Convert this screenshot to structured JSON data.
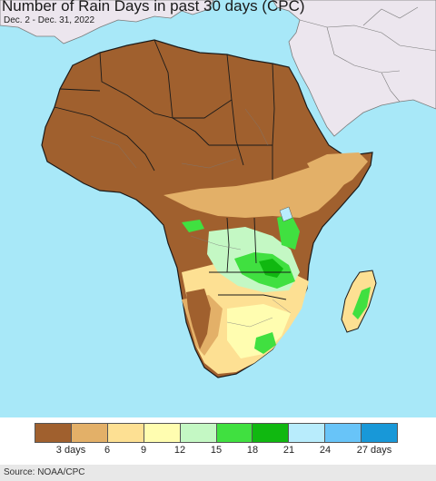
{
  "title": "Number of Rain Days in past 30 days (CPC)",
  "subtitle": "Dec. 2 - Dec. 31, 2022",
  "source": "Source: NOAA/CPC",
  "colors": {
    "ocean": "#a8e8f8",
    "no_data_land": "#ece6ee",
    "border": "#1a1a1a",
    "subborder": "#7a7a7a"
  },
  "legend": {
    "colors": [
      "#a0602e",
      "#e3b068",
      "#fde093",
      "#fffdb0",
      "#c4f8c4",
      "#40e040",
      "#10b810",
      "#b8ecfc",
      "#68c4f8",
      "#1898d8"
    ],
    "labels": [
      {
        "text": "3 days",
        "value": 3
      },
      {
        "text": "6",
        "value": 6
      },
      {
        "text": "9",
        "value": 9
      },
      {
        "text": "12",
        "value": 12
      },
      {
        "text": "15",
        "value": 15
      },
      {
        "text": "18",
        "value": 18
      },
      {
        "text": "21",
        "value": 21
      },
      {
        "text": "24",
        "value": 24
      },
      {
        "text": "27 days",
        "value": 27
      }
    ]
  }
}
